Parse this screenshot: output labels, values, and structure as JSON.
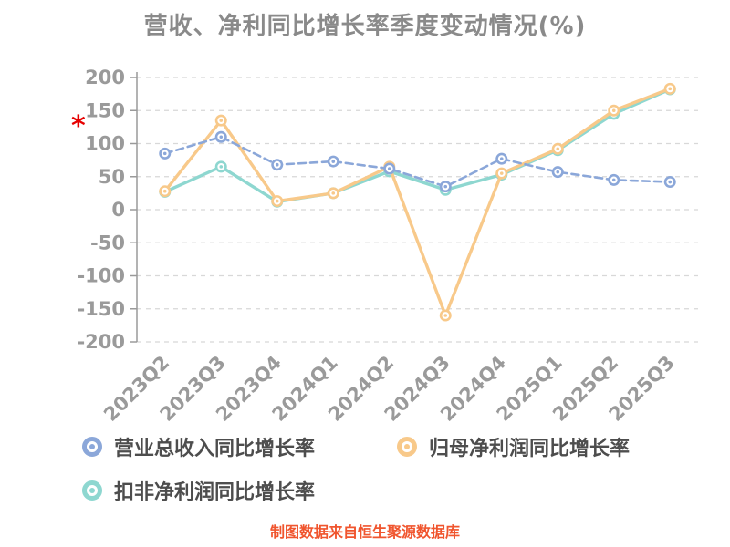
{
  "page": {
    "title": "营收、净利同比增长率季度变动情况(%)",
    "footer": "制图数据来自恒生聚源数据库",
    "annotation": "*"
  },
  "chart_data": {
    "type": "line",
    "title": "营收、净利同比增长率季度变动情况(%)",
    "categories": [
      "2023Q2",
      "2023Q3",
      "2023Q4",
      "2024Q1",
      "2024Q2",
      "2024Q3",
      "2024Q4",
      "2025Q1",
      "2025Q2",
      "2025Q3"
    ],
    "series": [
      {
        "name": "营业总收入同比增长率",
        "color": "#8ba7d9",
        "style": "dashed",
        "values": [
          85,
          110,
          68,
          73,
          62,
          35,
          77,
          57,
          45,
          42
        ]
      },
      {
        "name": "归母净利润同比增长率",
        "color": "#f8c98a",
        "style": "solid",
        "values": [
          28,
          135,
          13,
          25,
          65,
          -160,
          55,
          92,
          150,
          183
        ]
      },
      {
        "name": "扣非净利润同比增长率",
        "color": "#8ed7d0",
        "style": "solid",
        "values": [
          27,
          65,
          12,
          25,
          58,
          30,
          53,
          90,
          145,
          182
        ]
      }
    ],
    "ylim": [
      -200,
      200
    ],
    "y_ticks": [
      200,
      150,
      100,
      50,
      0,
      -50,
      -100,
      -150,
      -200
    ],
    "grid": "horizontal-dashed",
    "legend_position": "bottom-left"
  }
}
